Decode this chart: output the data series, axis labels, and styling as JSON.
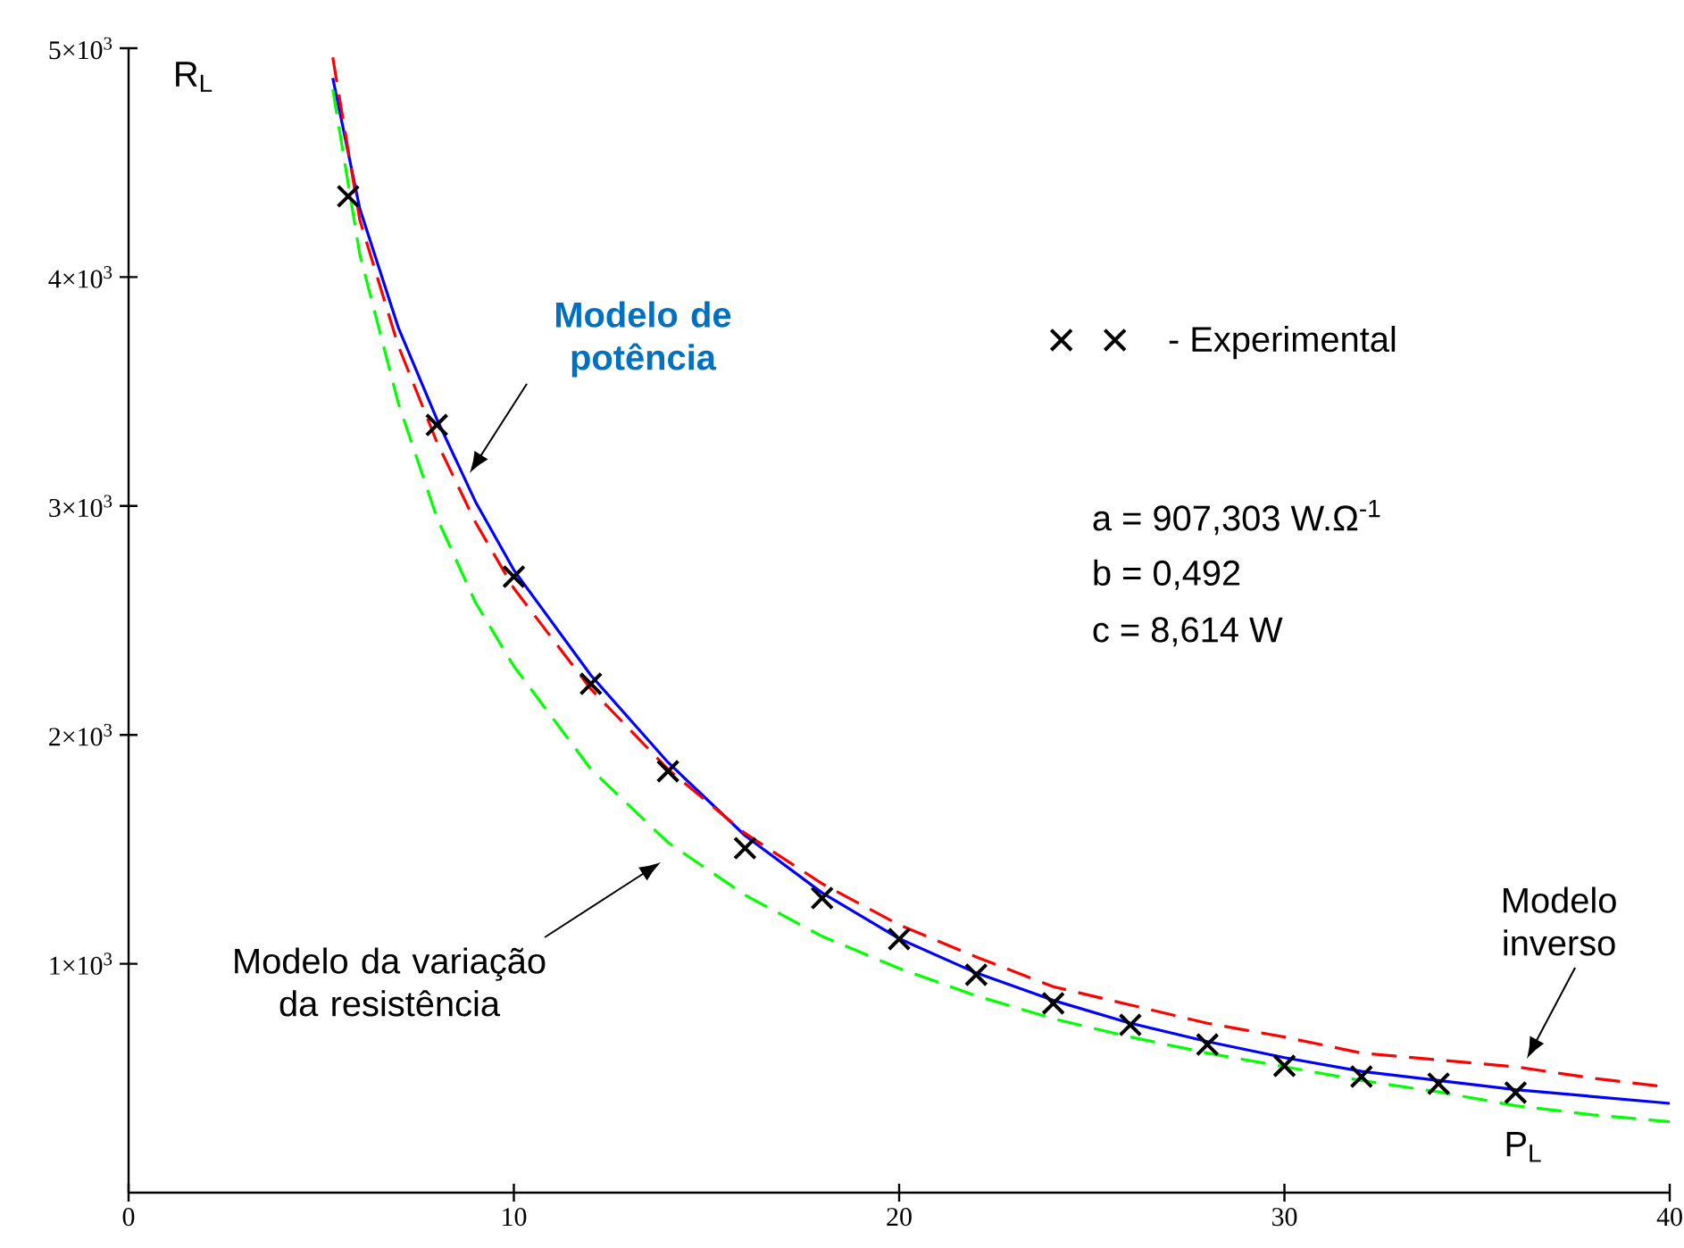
{
  "chart_data": {
    "type": "line",
    "xlabel": "P$_{L}$",
    "ylabel": "R$_{L}$",
    "xlim": [
      0,
      40
    ],
    "ylim": [
      0,
      5000
    ],
    "xticks": [
      0,
      10,
      20,
      30,
      40
    ],
    "yticks": [
      {
        "value": 1000,
        "label": "1×10$^{3}$"
      },
      {
        "value": 2000,
        "label": "2×10$^{3}$"
      },
      {
        "value": 3000,
        "label": "3×10$^{3}$"
      },
      {
        "value": 4000,
        "label": "4×10$^{3}$"
      },
      {
        "value": 5000,
        "label": "5×10$^{3}$"
      }
    ],
    "grid": false,
    "legend": "top right",
    "series": [
      {
        "color": "#0000ff",
        "line_style": "solid",
        "marker": "none",
        "x": [
          5.3,
          6,
          7,
          8,
          9,
          10,
          12,
          14,
          16,
          18,
          20,
          22,
          24,
          26,
          28,
          30,
          32,
          34,
          36,
          38,
          40
        ],
        "values": [
          4870,
          4300,
          3780,
          3380,
          3020,
          2720,
          2260,
          1880,
          1560,
          1310,
          1110,
          960,
          840,
          740,
          660,
          590,
          530,
          490,
          450,
          420,
          390
        ]
      },
      {
        "color": "#ff0000",
        "line_style": "dashed",
        "marker": "none",
        "x": [
          5.3,
          6,
          7,
          8,
          9,
          10,
          12,
          14,
          16,
          18,
          20,
          22,
          24,
          26,
          28,
          30,
          32,
          34,
          36,
          38,
          40
        ],
        "values": [
          4960,
          4250,
          3700,
          3280,
          2930,
          2640,
          2200,
          1850,
          1570,
          1350,
          1170,
          1030,
          900,
          820,
          740,
          680,
          610,
          580,
          550,
          500,
          460
        ]
      },
      {
        "color": "#00ff00",
        "line_style": "dashed",
        "marker": "none",
        "x": [
          5.3,
          6,
          7,
          8,
          9,
          10,
          12,
          14,
          16,
          18,
          20,
          22,
          24,
          26,
          28,
          30,
          32,
          34,
          36,
          38,
          40
        ],
        "values": [
          4820,
          4100,
          3450,
          2950,
          2580,
          2300,
          1850,
          1530,
          1300,
          1120,
          980,
          860,
          760,
          680,
          610,
          550,
          490,
          440,
          380,
          340,
          310
        ]
      },
      {
        "type": "scatter",
        "name": "- Experimental",
        "color": "#000000",
        "marker": "cross",
        "x": [
          5.7,
          8,
          10,
          12,
          14,
          16,
          18,
          20,
          22,
          24,
          26,
          28,
          30,
          32,
          34,
          36
        ],
        "values": [
          4353,
          3354,
          2691,
          2223,
          1841,
          1505,
          1287,
          1108,
          952,
          827,
          733,
          647,
          554,
          507,
          476,
          437
        ]
      }
    ],
    "annotations": [
      "Modelo de potência",
      "Modelo da variação da resistência",
      "Modelo inverso",
      "a = 907,303 W.Ω$^{-1}$",
      "b = 0,492",
      "c = 8,614 W"
    ]
  }
}
